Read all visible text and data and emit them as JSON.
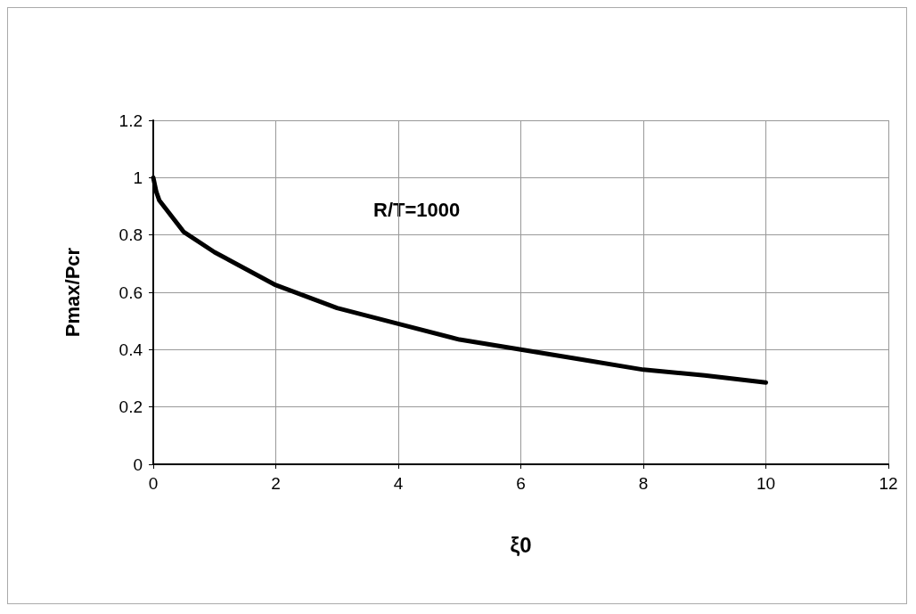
{
  "chart_data": {
    "type": "line",
    "xlabel": "ξ0",
    "ylabel": "Pmax/Pcr",
    "annotations": [
      "R/T=1000"
    ],
    "x": [
      0,
      0.05,
      0.1,
      0.5,
      1,
      2,
      3,
      4,
      5,
      6,
      7,
      8,
      9,
      10
    ],
    "series": [
      {
        "color": "#000000",
        "values": [
          1,
          0.95,
          0.92,
          0.81,
          0.74,
          0.625,
          0.545,
          0.49,
          0.435,
          0.4,
          0.365,
          0.33,
          0.31,
          0.285
        ]
      }
    ],
    "xlim": [
      0,
      12
    ],
    "xticks": [
      0,
      2,
      4,
      6,
      8,
      10,
      12
    ],
    "ylim": [
      0,
      1.2
    ],
    "yticks": [
      0,
      0.2,
      0.4,
      0.6,
      0.8,
      1,
      1.2
    ],
    "grid": true,
    "marker": "none",
    "line_style": "solid"
  }
}
